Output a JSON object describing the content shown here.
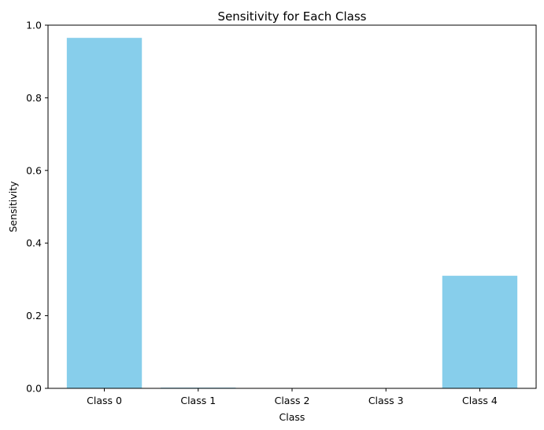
{
  "chart_data": {
    "type": "bar",
    "title": "Sensitivity for Each Class",
    "xlabel": "Class",
    "ylabel": "Sensitivity",
    "categories": [
      "Class 0",
      "Class 1",
      "Class 2",
      "Class 3",
      "Class 4"
    ],
    "values": [
      0.965,
      0.002,
      0.0,
      0.0,
      0.31
    ],
    "ylim": [
      0,
      1.0
    ],
    "yticks": [
      "0.0",
      "0.2",
      "0.4",
      "0.6",
      "0.8",
      "1.0"
    ],
    "grid": false,
    "bar_color": "#87ceeb"
  }
}
